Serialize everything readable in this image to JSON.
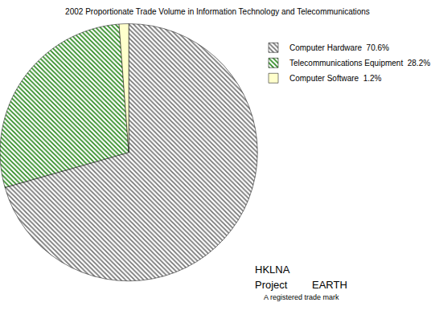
{
  "chart_data": {
    "type": "pie",
    "title": "2002 Proportionate Trade Volume in Information Technology and Telecommunications",
    "categories": [
      "Computer Hardware  70.6%",
      "Telecommunications Equipment  28.2%",
      "Computer Software  1.2%"
    ],
    "values": [
      70.6,
      28.2,
      1.2
    ],
    "colors": [
      "#777777",
      "#2e8b22",
      "#ffffcc"
    ],
    "legend": "upper right",
    "data_labels": false,
    "annotations": [
      "HKLNA",
      "Project",
      "EARTH",
      "A registered trade mark"
    ]
  }
}
